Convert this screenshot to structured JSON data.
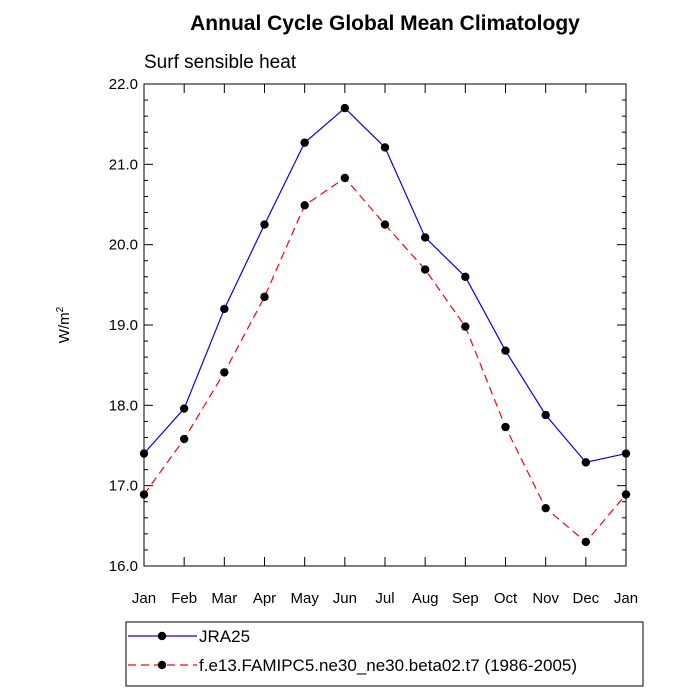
{
  "chart_data": {
    "type": "line",
    "title": "Annual Cycle Global Mean Climatology",
    "subtitle": "Surf sensible heat",
    "ylabel": "W/m",
    "ylabel_superscript": "2",
    "ylim": [
      16.0,
      22.0
    ],
    "yticks": [
      "16.0",
      "17.0",
      "18.0",
      "19.0",
      "20.0",
      "21.0",
      "22.0"
    ],
    "categories": [
      "Jan",
      "Feb",
      "Mar",
      "Apr",
      "May",
      "Jun",
      "Jul",
      "Aug",
      "Sep",
      "Oct",
      "Nov",
      "Dec",
      "Jan"
    ],
    "grid": false,
    "legend_position": "bottom",
    "series": [
      {
        "name": "JRA25",
        "color": "#0000ff",
        "dashed": false,
        "values": [
          17.4,
          17.96,
          19.2,
          20.25,
          21.27,
          21.7,
          21.21,
          20.09,
          19.6,
          18.68,
          17.88,
          17.29,
          17.4
        ]
      },
      {
        "name": "f.e13.FAMIPC5.ne30_ne30.beta02.t7 (1986-2005)",
        "color": "#ff0000",
        "dashed": true,
        "values": [
          16.89,
          17.58,
          18.41,
          19.35,
          20.49,
          20.83,
          20.25,
          19.69,
          18.98,
          17.73,
          16.72,
          16.3,
          16.89
        ]
      }
    ]
  }
}
